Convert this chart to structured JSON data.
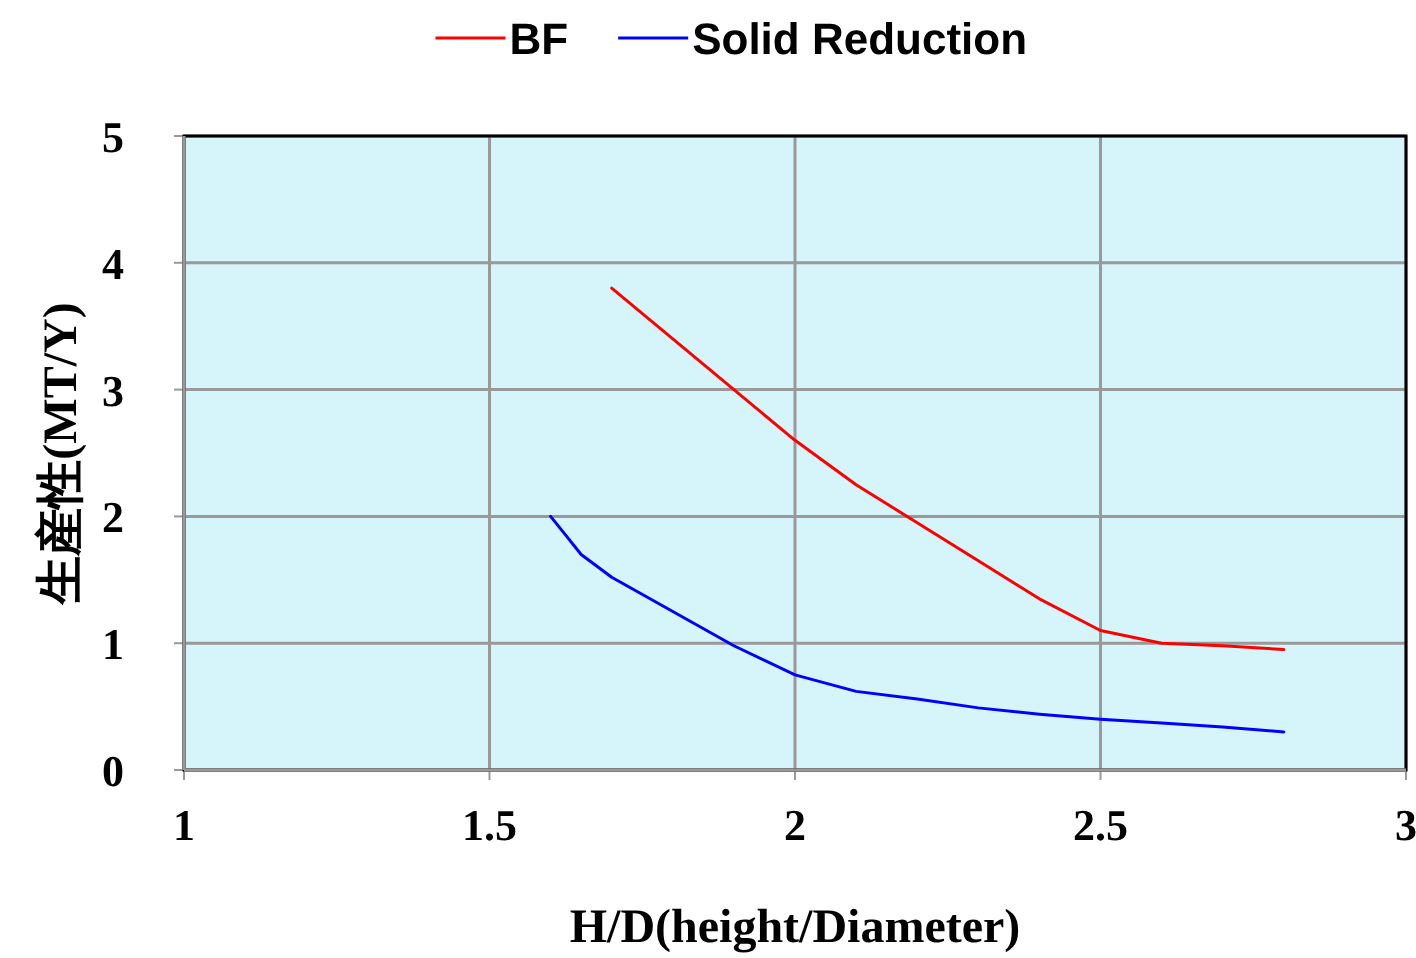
{
  "chart_data": {
    "type": "line",
    "xlabel": "H/D(height/Diameter)",
    "ylabel": "生産性(MT/Y)",
    "xlim": [
      1,
      3
    ],
    "xticks": [
      1,
      1.5,
      2,
      2.5,
      3
    ],
    "ylim": [
      0,
      5
    ],
    "yticks": [
      0,
      1,
      2,
      3,
      4,
      5
    ],
    "grid": true,
    "legend": "top",
    "marker": "none",
    "line_style": "solid",
    "series": [
      {
        "name": "BF",
        "color": "#ff0000",
        "x": [
          1.7,
          1.8,
          1.9,
          2.0,
          2.1,
          2.2,
          2.3,
          2.4,
          2.5,
          2.6,
          2.7,
          2.8
        ],
        "values": [
          3.8,
          3.4,
          3.0,
          2.6,
          2.25,
          1.95,
          1.65,
          1.35,
          1.1,
          1.0,
          0.98,
          0.95
        ]
      },
      {
        "name": "Solid Reduction",
        "color": "#0000ff",
        "x": [
          1.6,
          1.625,
          1.65,
          1.7,
          1.8,
          1.9,
          2.0,
          2.1,
          2.2,
          2.3,
          2.4,
          2.5,
          2.6,
          2.7,
          2.8
        ],
        "values": [
          2.0,
          1.85,
          1.7,
          1.52,
          1.25,
          0.98,
          0.75,
          0.62,
          0.56,
          0.49,
          0.44,
          0.4,
          0.37,
          0.34,
          0.3
        ]
      }
    ]
  }
}
